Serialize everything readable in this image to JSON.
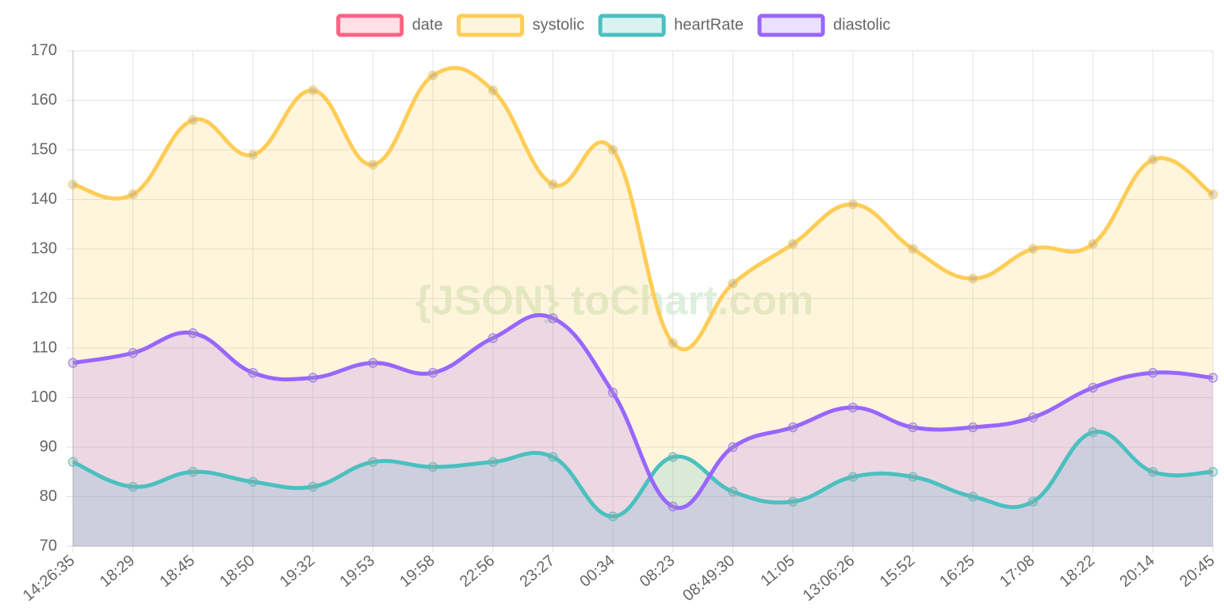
{
  "chart_data": {
    "type": "line",
    "watermark": "{JSON} toChart.com",
    "categories": [
      "14:26:35",
      "18:29",
      "18:45",
      "18:50",
      "19:32",
      "19:53",
      "19:58",
      "22:56",
      "23:27",
      "00:34",
      "08:23",
      "08:49:30",
      "11:05",
      "13:06:26",
      "15:52",
      "16:25",
      "17:08",
      "18:22",
      "20:14",
      "20:45"
    ],
    "series": [
      {
        "name": "date",
        "color": "#ff6384",
        "values": [
          null,
          null,
          null,
          null,
          null,
          null,
          null,
          null,
          null,
          null,
          null,
          null,
          null,
          null,
          null,
          null,
          null,
          null,
          null,
          null
        ]
      },
      {
        "name": "systolic",
        "color": "#ffcd56",
        "values": [
          143,
          141,
          156,
          149,
          162,
          147,
          165,
          162,
          143,
          150,
          111,
          123,
          131,
          139,
          130,
          124,
          130,
          131,
          148,
          141
        ]
      },
      {
        "name": "heartRate",
        "color": "#4bc0c0",
        "values": [
          87,
          82,
          85,
          83,
          82,
          87,
          86,
          87,
          88,
          76,
          88,
          81,
          79,
          84,
          84,
          80,
          79,
          93,
          85,
          85
        ]
      },
      {
        "name": "diastolic",
        "color": "#9966ff",
        "values": [
          107,
          109,
          113,
          105,
          104,
          107,
          105,
          112,
          116,
          101,
          78,
          90,
          94,
          98,
          94,
          94,
          96,
          102,
          105,
          104
        ]
      }
    ],
    "ylim": [
      70,
      170
    ],
    "yticks": [
      70,
      80,
      90,
      100,
      110,
      120,
      130,
      140,
      150,
      160,
      170
    ],
    "grid": true,
    "fill": true,
    "legend": "top"
  }
}
